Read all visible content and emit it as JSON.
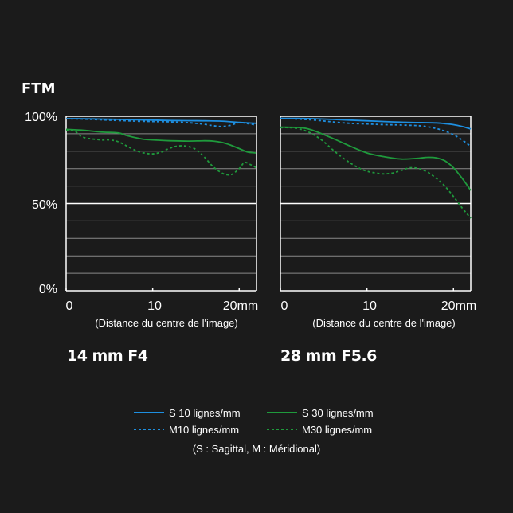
{
  "y_unit_label": "FTM",
  "y_ticks": [
    "100%",
    "50%",
    "0%"
  ],
  "chart_data": [
    {
      "type": "line",
      "title": "14 mm F4",
      "xlabel": "(Distance du centre de l'image)",
      "x_tick_labels": [
        "0",
        "10",
        "20mm"
      ],
      "xlim": [
        0,
        22
      ],
      "ylim": [
        0,
        100
      ],
      "y_tick_labels": [
        "100%",
        "50%",
        "0%"
      ],
      "grid": true,
      "series": [
        {
          "name": "S 10 lignes/mm",
          "style": "solid",
          "color": "#1e8fe0",
          "x": [
            0,
            2,
            4,
            6,
            8,
            10,
            12,
            14,
            16,
            18,
            20,
            21,
            22
          ],
          "y": [
            98.6,
            98.6,
            98.4,
            98.2,
            98,
            97.8,
            97.6,
            97.5,
            97.4,
            97.2,
            96.5,
            96.2,
            96
          ]
        },
        {
          "name": "M10 lignes/mm",
          "style": "dashed",
          "color": "#1e8fe0",
          "x": [
            0,
            2,
            4,
            6,
            8,
            10,
            12,
            14,
            16,
            17,
            18,
            19,
            20,
            21,
            22
          ],
          "y": [
            98.6,
            98.4,
            98,
            97.6,
            97.2,
            97,
            96.8,
            96.4,
            95.4,
            94.6,
            94.2,
            94.8,
            96.4,
            95.8,
            95
          ]
        },
        {
          "name": "S 30 lignes/mm",
          "style": "solid",
          "color": "#1f9a3c",
          "x": [
            0,
            2,
            4,
            6,
            7,
            8,
            9,
            10,
            12,
            14,
            16,
            17,
            18,
            19,
            20,
            21,
            22
          ],
          "y": [
            92.5,
            92,
            91,
            90.5,
            89,
            87.8,
            86.8,
            86.5,
            86,
            85.8,
            86,
            85.8,
            85,
            83.5,
            81.5,
            79.5,
            79
          ]
        },
        {
          "name": "M30 lignes/mm",
          "style": "dashed",
          "color": "#1f9a3c",
          "x": [
            0,
            1,
            2,
            4,
            5,
            6,
            7,
            8,
            9,
            10,
            11,
            12,
            13,
            14,
            15,
            16,
            17,
            18,
            18.6,
            19.2,
            20,
            20.6,
            21.2,
            22
          ],
          "y": [
            92,
            91.5,
            88,
            86.5,
            86.5,
            85.5,
            83,
            80.5,
            79,
            78.5,
            79.5,
            81.8,
            83,
            82.8,
            81,
            76.5,
            71,
            67.5,
            66.5,
            66.8,
            70,
            73.5,
            72.5,
            70.5
          ]
        }
      ]
    },
    {
      "type": "line",
      "title": "28 mm F5.6",
      "xlabel": "(Distance du centre de l'image)",
      "x_tick_labels": [
        "0",
        "10",
        "20mm"
      ],
      "xlim": [
        0,
        22
      ],
      "ylim": [
        0,
        100
      ],
      "y_tick_labels": [],
      "grid": true,
      "series": [
        {
          "name": "S 10 lignes/mm",
          "style": "solid",
          "color": "#1e8fe0",
          "x": [
            0,
            2,
            4,
            6,
            8,
            10,
            12,
            14,
            16,
            18,
            19,
            20,
            21,
            22
          ],
          "y": [
            98.8,
            98.8,
            98.6,
            98.2,
            97.8,
            97.4,
            97,
            96.6,
            96.4,
            96.2,
            95.8,
            95.2,
            94.2,
            92.8
          ]
        },
        {
          "name": "M10 lignes/mm",
          "style": "dashed",
          "color": "#1e8fe0",
          "x": [
            0,
            2,
            4,
            6,
            8,
            10,
            12,
            14,
            16,
            17,
            18,
            19,
            20,
            21,
            22
          ],
          "y": [
            98.8,
            98.4,
            97.8,
            96.8,
            96,
            95.6,
            95.2,
            95,
            94.6,
            94,
            93,
            91.5,
            89.5,
            86.5,
            82.8
          ]
        },
        {
          "name": "S 30 lignes/mm",
          "style": "solid",
          "color": "#1f9a3c",
          "x": [
            0,
            2,
            3,
            4,
            6,
            8,
            10,
            12,
            14,
            16,
            17,
            18,
            19,
            20,
            21,
            22
          ],
          "y": [
            93.8,
            93.6,
            93,
            91.5,
            87.5,
            83,
            79,
            76.8,
            75.5,
            76,
            76.5,
            76.2,
            74.5,
            70.5,
            64.5,
            57.5
          ]
        },
        {
          "name": "M30 lignes/mm",
          "style": "dashed",
          "color": "#1f9a3c",
          "x": [
            0,
            1,
            2,
            3,
            4,
            5,
            6,
            7,
            8,
            9,
            10,
            11,
            12,
            13,
            14,
            15,
            16,
            17,
            18,
            19,
            20,
            21,
            22
          ],
          "y": [
            93.5,
            93.5,
            93,
            91.5,
            89,
            85.5,
            81,
            77,
            73.5,
            70.5,
            68.5,
            67.5,
            67,
            67.5,
            69,
            70.5,
            70,
            68,
            64.5,
            60,
            54,
            47.5,
            41.5
          ]
        }
      ]
    }
  ],
  "legend": {
    "entries": [
      {
        "label": "S 10 lignes/mm",
        "style": "solid",
        "color": "#1e8fe0"
      },
      {
        "label": "S 30 lignes/mm",
        "style": "solid",
        "color": "#1f9a3c"
      },
      {
        "label": "M10 lignes/mm",
        "style": "dashed",
        "color": "#1e8fe0"
      },
      {
        "label": "M30 lignes/mm",
        "style": "dashed",
        "color": "#1f9a3c"
      }
    ],
    "note": "(S : Sagittal, M : Méridional)"
  },
  "colors": {
    "background": "#1b1b1b",
    "grid": "#8a8a8a",
    "axis": "#ffffff"
  }
}
